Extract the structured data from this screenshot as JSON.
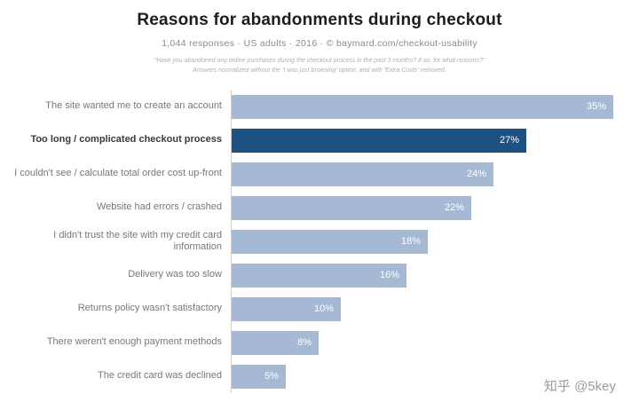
{
  "header": {
    "title": "Reasons for abandonments during checkout",
    "subtitle": "1,044 responses  ·  US adults  ·  2016  ·  © baymard.com/checkout-usability",
    "note_line1": "\"Have you abandoned any online purchases during the checkout process in the past 3 months? If so, for what reasons?\"",
    "note_line2": "Answers normalized without the 'I was just browsing' option, and with 'Extra Costs' removed."
  },
  "chart_data": {
    "type": "bar",
    "orientation": "horizontal",
    "title": "Reasons for abandonments during checkout",
    "categories": [
      "The site wanted me to create an account",
      "Too long / complicated checkout process",
      "I couldn't see / calculate total order cost up-front",
      "Website had errors / crashed",
      "I didn't trust the site with my credit card information",
      "Delivery was too slow",
      "Returns policy wasn't satisfactory",
      "There weren't enough payment methods",
      "The credit card was declined"
    ],
    "values": [
      35,
      27,
      24,
      22,
      18,
      16,
      10,
      8,
      5
    ],
    "unit": "%",
    "highlight_index": 1,
    "bar_color": "#a5b9d5",
    "highlight_color": "#1d5181",
    "value_label_color": "#ffffff",
    "xlim": [
      0,
      36
    ],
    "legend": "none",
    "grid": "off"
  },
  "watermark": "知乎 @5key"
}
